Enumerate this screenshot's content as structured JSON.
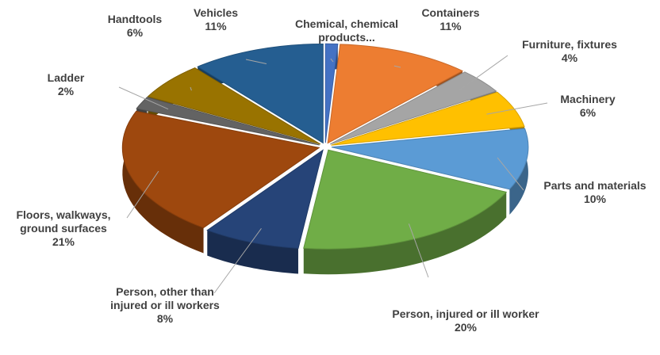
{
  "chart_data": {
    "type": "pie",
    "categories": [
      "Chemical, chemical products...",
      "Containers",
      "Furniture, fixtures",
      "Machinery",
      "Parts and materials",
      "Person, injured or ill worker",
      "Person, other than injured or ill workers",
      "Floors, walkways, ground surfaces",
      "Ladder",
      "Handtools",
      "Vehicles"
    ],
    "values": [
      1,
      11,
      4,
      6,
      10,
      20,
      8,
      21,
      2,
      6,
      11
    ],
    "value_labels": [
      null,
      "11%",
      "4%",
      "6%",
      "10%",
      "20%",
      "8%",
      "21%",
      "2%",
      "6%",
      "11%"
    ],
    "colors": [
      "#4472c4",
      "#ed7d31",
      "#a5a5a5",
      "#ffc000",
      "#5b9bd5",
      "#70ad47",
      "#264478",
      "#9e480e",
      "#636363",
      "#997300",
      "#255e91"
    ]
  }
}
